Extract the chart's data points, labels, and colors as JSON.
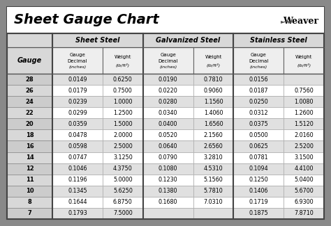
{
  "title": "Sheet Gauge Chart",
  "bg_outer": "#898989",
  "bg_white": "#ffffff",
  "row_shaded": "#e0e0e0",
  "row_white": "#ffffff",
  "header_bg": "#d8d8d8",
  "gauges": [
    28,
    26,
    24,
    22,
    20,
    18,
    16,
    14,
    12,
    11,
    10,
    8,
    7
  ],
  "sheet_steel": {
    "decimal": [
      "0.0149",
      "0.0179",
      "0.0239",
      "0.0299",
      "0.0359",
      "0.0478",
      "0.0598",
      "0.0747",
      "0.1046",
      "0.1196",
      "0.1345",
      "0.1644",
      "0.1793"
    ],
    "weight": [
      "0.6250",
      "0.7500",
      "1.0000",
      "1.2500",
      "1.5000",
      "2.0000",
      "2.5000",
      "3.1250",
      "4.3750",
      "5.0000",
      "5.6250",
      "6.8750",
      "7.5000"
    ]
  },
  "galvanized_steel": {
    "decimal": [
      "0.0190",
      "0.0220",
      "0.0280",
      "0.0340",
      "0.0400",
      "0.0520",
      "0.0640",
      "0.0790",
      "0.1080",
      "0.1230",
      "0.1380",
      "0.1680",
      ""
    ],
    "weight": [
      "0.7810",
      "0.9060",
      "1.1560",
      "1.4060",
      "1.6560",
      "2.1560",
      "2.6560",
      "3.2810",
      "4.5310",
      "5.1560",
      "5.7810",
      "7.0310",
      ""
    ]
  },
  "stainless_steel": {
    "decimal": [
      "0.0156",
      "0.0187",
      "0.0250",
      "0.0312",
      "0.0375",
      "0.0500",
      "0.0625",
      "0.0781",
      "0.1094",
      "0.1250",
      "0.1406",
      "0.1719",
      "0.1875"
    ],
    "weight": [
      "",
      "0.7560",
      "1.0080",
      "1.2600",
      "1.5120",
      "2.0160",
      "2.5200",
      "3.1500",
      "4.4100",
      "5.0400",
      "5.6700",
      "6.9300",
      "7.8710"
    ]
  }
}
